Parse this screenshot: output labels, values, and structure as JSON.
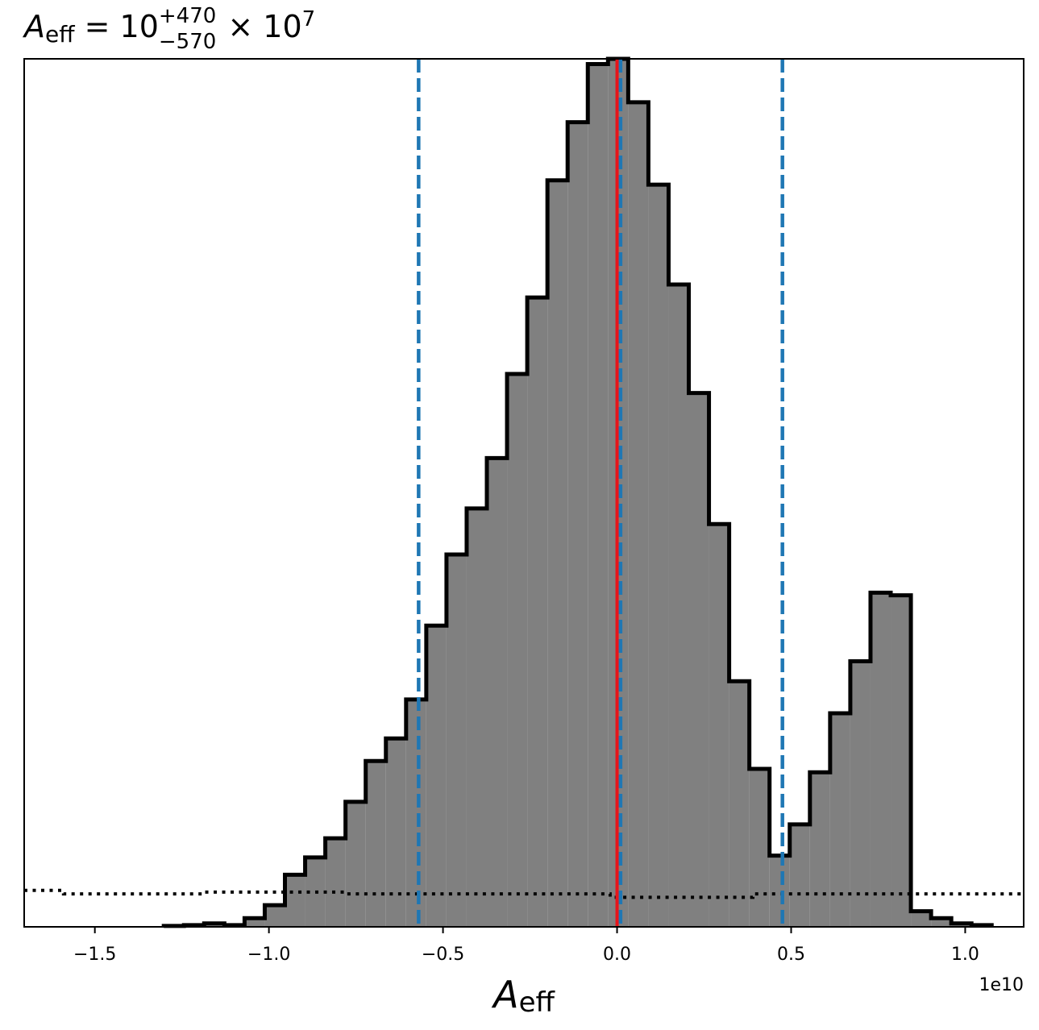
{
  "chart_data": {
    "type": "bar",
    "title": {
      "symbol": "A",
      "subscript": "eff",
      "equals": " = ",
      "base": "10",
      "sup": "+470",
      "sub": "−570",
      "times": " × 10",
      "exponent": "7"
    },
    "xlabel": {
      "symbol": "A",
      "subscript": "eff"
    },
    "ylabel": "",
    "x_offset_label": "1e10",
    "xlim": [
      -1.703,
      1.168
    ],
    "ylim": [
      0,
      1.0
    ],
    "grid": false,
    "x_ticks": [
      {
        "value": -1.5,
        "label": "−1.5"
      },
      {
        "value": -1.0,
        "label": "−1.0"
      },
      {
        "value": -0.5,
        "label": "−0.5"
      },
      {
        "value": 0.0,
        "label": "0.0"
      },
      {
        "value": 0.5,
        "label": "0.5"
      },
      {
        "value": 1.0,
        "label": "1.0"
      }
    ],
    "histogram": {
      "fill_color": "#808080",
      "edge_color": "#000000",
      "bin_edges": [
        -1.302,
        -1.244,
        -1.186,
        -1.128,
        -1.07,
        -1.012,
        -0.954,
        -0.896,
        -0.838,
        -0.78,
        -0.722,
        -0.664,
        -0.606,
        -0.548,
        -0.49,
        -0.432,
        -0.374,
        -0.316,
        -0.258,
        -0.2,
        -0.142,
        -0.084,
        -0.026,
        0.032,
        0.09,
        0.148,
        0.206,
        0.264,
        0.322,
        0.38,
        0.438,
        0.496,
        0.554,
        0.612,
        0.67,
        0.728,
        0.786,
        0.844,
        0.902,
        0.96,
        1.018,
        1.076
      ],
      "heights": [
        0.001,
        0.002,
        0.004,
        0.002,
        0.01,
        0.025,
        0.06,
        0.08,
        0.102,
        0.144,
        0.191,
        0.217,
        0.262,
        0.347,
        0.429,
        0.482,
        0.54,
        0.637,
        0.725,
        0.86,
        0.927,
        0.994,
        1.0,
        0.95,
        0.855,
        0.74,
        0.615,
        0.464,
        0.283,
        0.182,
        0.082,
        0.118,
        0.178,
        0.246,
        0.306,
        0.385,
        0.382,
        0.018,
        0.01,
        0.004,
        0.002
      ]
    },
    "prior": {
      "style": "dotted",
      "color": "#000000",
      "x": [
        -1.703,
        -1.59,
        -1.59,
        -1.19,
        -1.19,
        -0.78,
        -0.78,
        -0.02,
        -0.02,
        0.39,
        0.39,
        0.78,
        0.78,
        1.168
      ],
      "y": [
        0.042,
        0.042,
        0.038,
        0.038,
        0.04,
        0.04,
        0.038,
        0.038,
        0.034,
        0.034,
        0.038,
        0.038,
        0.038,
        0.038
      ]
    },
    "vlines": [
      {
        "name": "lower-bound",
        "x": -0.57,
        "color": "#1f77b4",
        "style": "dashed"
      },
      {
        "name": "median",
        "x": 0.01,
        "color": "#1f77b4",
        "style": "dashed"
      },
      {
        "name": "upper-bound",
        "x": 0.475,
        "color": "#1f77b4",
        "style": "dashed"
      },
      {
        "name": "true-value",
        "x": 0.0,
        "color": "#e8141a",
        "style": "solid"
      }
    ]
  }
}
